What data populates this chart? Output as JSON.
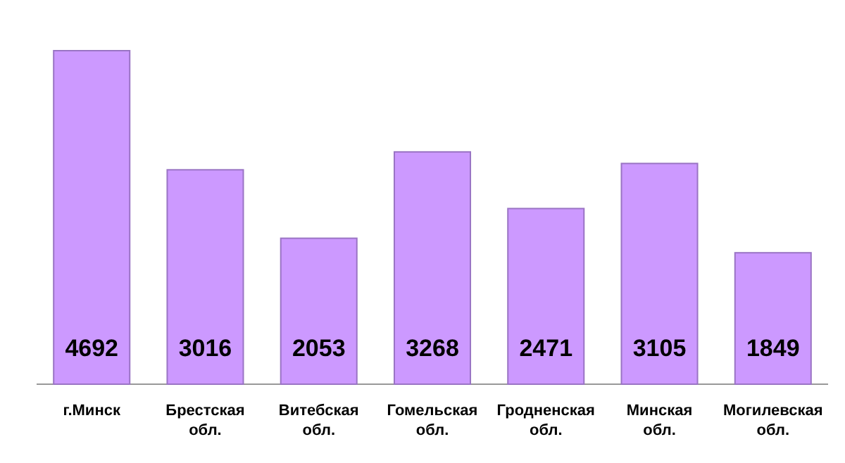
{
  "chart_data": {
    "type": "bar",
    "categories": [
      "г.Минск",
      "Брестская обл.",
      "Витебская обл.",
      "Гомельская обл.",
      "Гродненская обл.",
      "Минская обл.",
      "Могилевская обл."
    ],
    "values": [
      4692,
      3016,
      2053,
      3268,
      2471,
      3105,
      1849
    ],
    "color": "#cc99ff",
    "data_labels": true
  }
}
